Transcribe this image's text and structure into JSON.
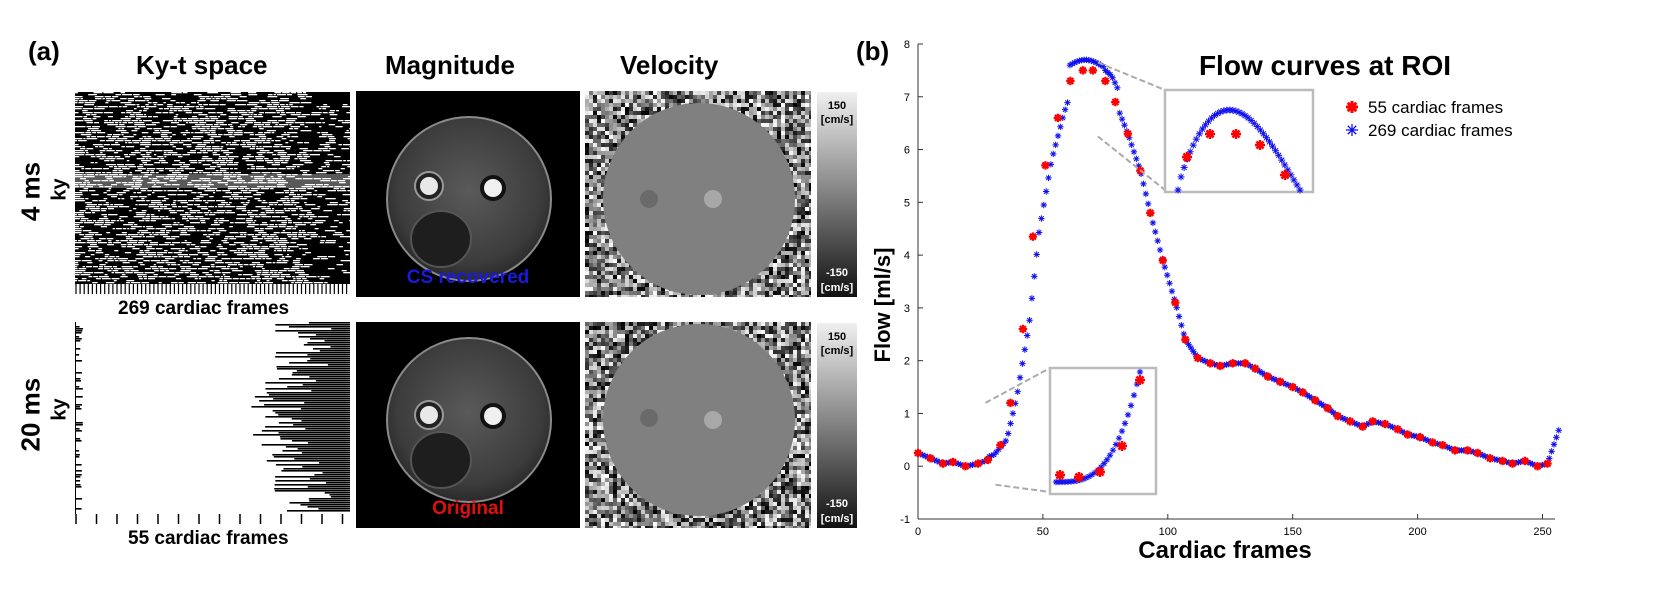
{
  "panel_a": {
    "label": "(a)",
    "col_headers": {
      "kyt": "Ky-t space",
      "magnitude": "Magnitude",
      "velocity": "Velocity"
    },
    "row1": {
      "time": "4 ms",
      "axis": "ky",
      "frames_caption": "269 cardiac frames",
      "overlay": "CS recovered",
      "overlay_color": "#1a1adc"
    },
    "row2": {
      "time": "20 ms",
      "axis": "ky",
      "frames_caption": "55 cardiac frames",
      "overlay": "Original",
      "overlay_color": "#e01010"
    },
    "colorbar": {
      "max": "150",
      "min": "-150",
      "unit": "[cm/s]"
    }
  },
  "panel_b": {
    "label": "(b)"
  },
  "chart_data": {
    "type": "scatter",
    "title": "Flow curves at ROI",
    "xlabel": "Cardiac frames",
    "ylabel": "Flow [ml/s]",
    "xlim": [
      0,
      255
    ],
    "ylim": [
      -1,
      8
    ],
    "x_ticks": [
      0,
      50,
      100,
      150,
      200,
      250
    ],
    "y_ticks": [
      -1,
      0,
      1,
      2,
      3,
      4,
      5,
      6,
      7,
      8
    ],
    "grid": false,
    "legend_position": "top-right",
    "series": [
      {
        "name": "55 cardiac frames",
        "color": "#ff0000",
        "marker": "bold-star",
        "points": [
          [
            0,
            0.25
          ],
          [
            5,
            0.15
          ],
          [
            10,
            0.05
          ],
          [
            14,
            0.08
          ],
          [
            19,
            0.0
          ],
          [
            24,
            0.05
          ],
          [
            28,
            0.12
          ],
          [
            33,
            0.4
          ],
          [
            37,
            1.2
          ],
          [
            42,
            2.6
          ],
          [
            46,
            4.35
          ],
          [
            51,
            5.7
          ],
          [
            56,
            6.6
          ],
          [
            61,
            7.3
          ],
          [
            66,
            7.5
          ],
          [
            70,
            7.5
          ],
          [
            75,
            7.3
          ],
          [
            79,
            6.9
          ],
          [
            84,
            6.3
          ],
          [
            89,
            5.6
          ],
          [
            93,
            4.8
          ],
          [
            98,
            3.9
          ],
          [
            103,
            3.1
          ],
          [
            107,
            2.4
          ],
          [
            112,
            2.05
          ],
          [
            117,
            1.95
          ],
          [
            121,
            1.9
          ],
          [
            126,
            1.95
          ],
          [
            131,
            1.95
          ],
          [
            135,
            1.85
          ],
          [
            140,
            1.7
          ],
          [
            145,
            1.6
          ],
          [
            150,
            1.5
          ],
          [
            154,
            1.4
          ],
          [
            159,
            1.25
          ],
          [
            164,
            1.1
          ],
          [
            168,
            0.95
          ],
          [
            173,
            0.85
          ],
          [
            178,
            0.75
          ],
          [
            182,
            0.85
          ],
          [
            187,
            0.8
          ],
          [
            192,
            0.7
          ],
          [
            196,
            0.6
          ],
          [
            201,
            0.55
          ],
          [
            206,
            0.45
          ],
          [
            210,
            0.4
          ],
          [
            215,
            0.3
          ],
          [
            220,
            0.3
          ],
          [
            224,
            0.25
          ],
          [
            229,
            0.15
          ],
          [
            234,
            0.1
          ],
          [
            238,
            0.05
          ],
          [
            243,
            0.1
          ],
          [
            248,
            0.0
          ],
          [
            252,
            0.05
          ]
        ]
      },
      {
        "name": "269 cardiac frames",
        "color": "#1010ee",
        "marker": "star"
      }
    ]
  }
}
